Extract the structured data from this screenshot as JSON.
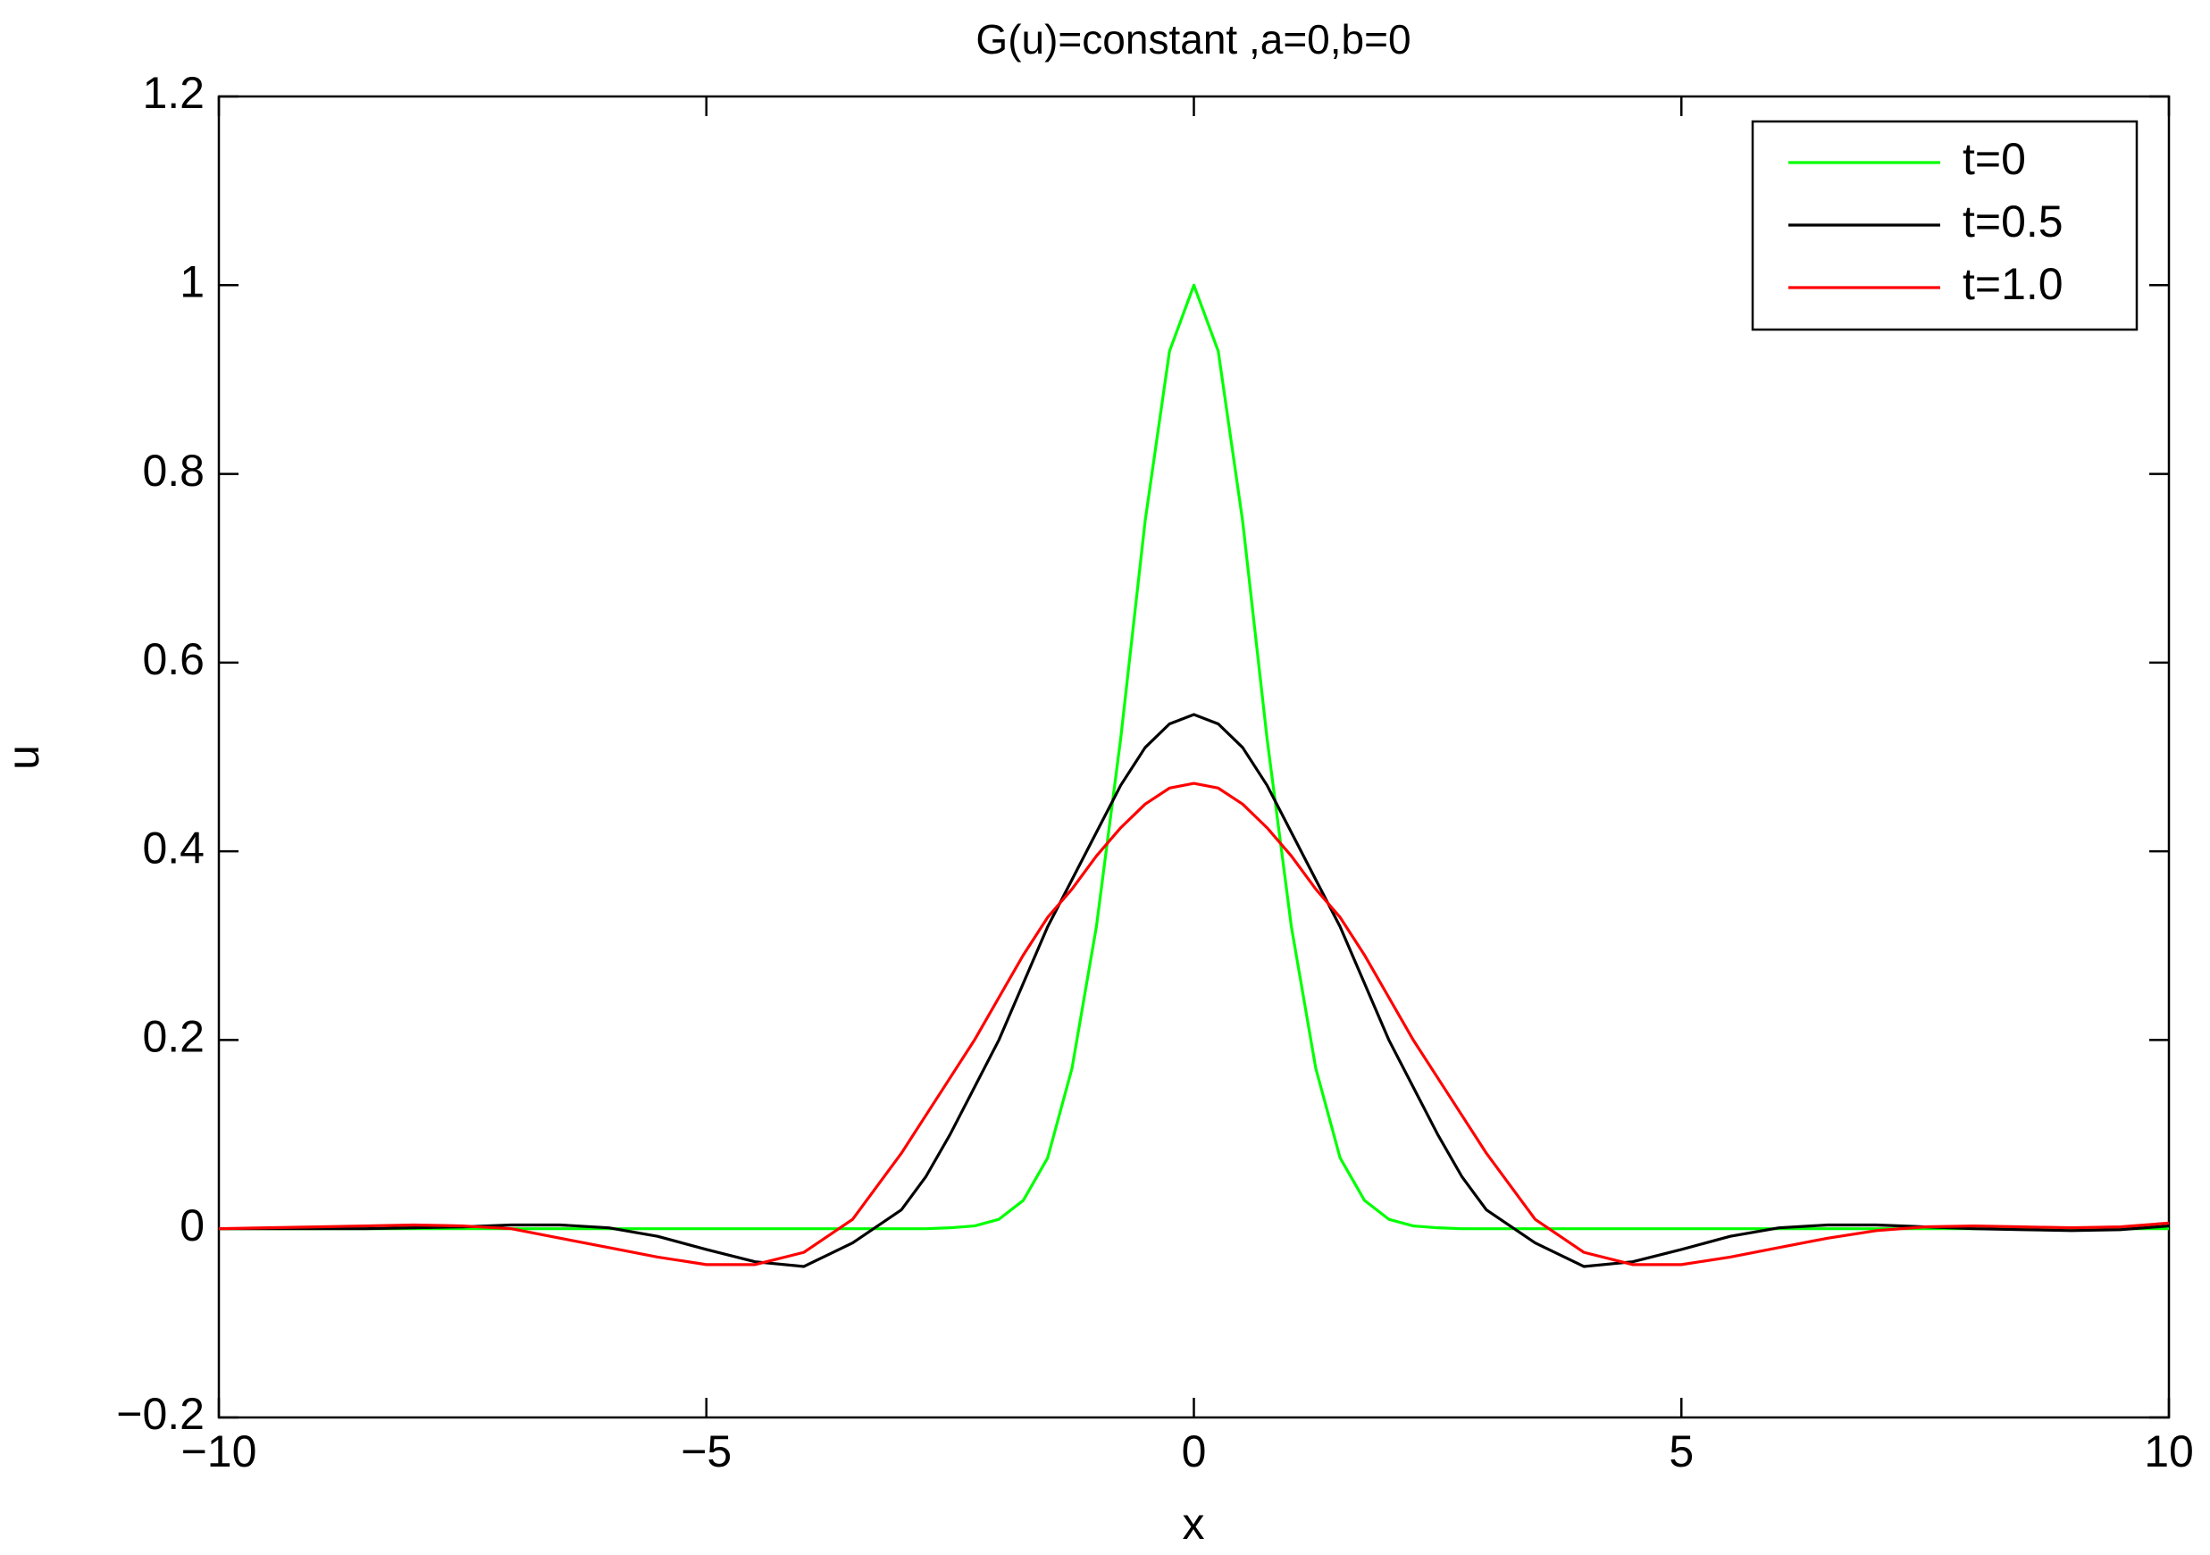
{
  "chart_data": {
    "type": "line",
    "title": "G(u)=constant ,a=0,b=0",
    "xlabel": "x",
    "ylabel": "u",
    "x": [
      -10,
      -9.5,
      -9,
      -8.5,
      -8,
      -7.5,
      -7,
      -6.5,
      -6,
      -5.5,
      -5,
      -4.5,
      -4,
      -3.5,
      -3,
      -2.75,
      -2.5,
      -2.25,
      -2,
      -1.75,
      -1.5,
      -1.25,
      -1,
      -0.75,
      -0.5,
      -0.25,
      0,
      0.25,
      0.5,
      0.75,
      1,
      1.25,
      1.5,
      1.75,
      2,
      2.25,
      2.5,
      2.75,
      3,
      3.5,
      4,
      4.5,
      5,
      5.5,
      6,
      6.5,
      7,
      7.5,
      8,
      8.5,
      9,
      9.5,
      10
    ],
    "series": [
      {
        "name": "t=0",
        "color": "#00ff00",
        "values": [
          0,
          0,
          0,
          0,
          0,
          0,
          0,
          0,
          0,
          0,
          0,
          0,
          0,
          0,
          0,
          0,
          0.001,
          0.003,
          0.01,
          0.03,
          0.075,
          0.17,
          0.32,
          0.52,
          0.75,
          0.93,
          1,
          0.93,
          0.75,
          0.52,
          0.32,
          0.17,
          0.075,
          0.03,
          0.01,
          0.003,
          0.001,
          0,
          0,
          0,
          0,
          0,
          0,
          0,
          0,
          0,
          0,
          0,
          0,
          0,
          0,
          0,
          0
        ]
      },
      {
        "name": "t=0.5",
        "color": "#000000",
        "values": [
          0,
          0,
          0,
          0,
          0.001,
          0.002,
          0.004,
          0.004,
          0.001,
          -0.008,
          -0.022,
          -0.035,
          -0.04,
          -0.015,
          0.02,
          0.055,
          0.1,
          0.15,
          0.2,
          0.26,
          0.32,
          0.37,
          0.42,
          0.47,
          0.51,
          0.535,
          0.545,
          0.535,
          0.51,
          0.47,
          0.42,
          0.37,
          0.32,
          0.26,
          0.2,
          0.15,
          0.1,
          0.055,
          0.02,
          -0.015,
          -0.04,
          -0.035,
          -0.022,
          -0.008,
          0.001,
          0.004,
          0.004,
          0.002,
          0,
          -0.001,
          -0.002,
          -0.001,
          0.003
        ]
      },
      {
        "name": "t=1.0",
        "color": "#ff0000",
        "values": [
          0,
          0.001,
          0.002,
          0.003,
          0.004,
          0.003,
          0,
          -0.01,
          -0.02,
          -0.03,
          -0.038,
          -0.038,
          -0.025,
          0.01,
          0.08,
          0.12,
          0.16,
          0.2,
          0.245,
          0.29,
          0.33,
          0.36,
          0.395,
          0.425,
          0.45,
          0.467,
          0.472,
          0.467,
          0.45,
          0.425,
          0.395,
          0.36,
          0.33,
          0.29,
          0.245,
          0.2,
          0.16,
          0.12,
          0.08,
          0.01,
          -0.025,
          -0.038,
          -0.038,
          -0.03,
          -0.02,
          -0.01,
          -0.002,
          0.002,
          0.003,
          0.002,
          0.001,
          0.002,
          0.006
        ]
      }
    ],
    "xlim": [
      -10,
      10
    ],
    "xticks": [
      {
        "value": -10,
        "label": "−10"
      },
      {
        "value": -5,
        "label": "−5"
      },
      0,
      5,
      10
    ],
    "ylim": [
      -0.2,
      1.2
    ],
    "yticks": [
      {
        "value": -0.2,
        "label": "−0.2"
      },
      0,
      0.2,
      0.4,
      0.6,
      0.8,
      1,
      1.2
    ],
    "legend": "upper right"
  }
}
